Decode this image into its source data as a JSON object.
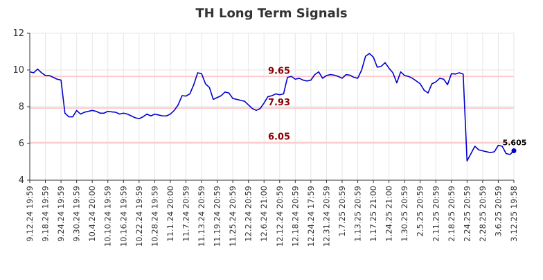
{
  "chart_data": {
    "type": "line",
    "title": "TH Long Term Signals",
    "xlabel": "",
    "ylabel": "",
    "ylim": [
      4,
      12
    ],
    "yticks": [
      4,
      6,
      8,
      10,
      12
    ],
    "grid": true,
    "colors": {
      "line": "#0000cc",
      "reference_line": "#ffcccc",
      "reference_label": "#8b0000",
      "title": "#333333"
    },
    "x_tick_labels": [
      "9.12.24 19:59",
      "9.18.24 19:59",
      "9.24.24 19:59",
      "9.30.24 19:59",
      "10.4.24 20:00",
      "10.10.24 19:59",
      "10.16.24 19:59",
      "10.22.24 19:59",
      "10.28.24 19:59",
      "11.1.24 20:00",
      "11.7.24 20:59",
      "11.13.24 20:59",
      "11.19.24 20:59",
      "11.25.24 20:59",
      "12.2.24 20:59",
      "12.6.24 21:00",
      "12.12.24 20:59",
      "12.18.24 20:59",
      "12.24.24 17:59",
      "12.31.24 20:59",
      "1.7.25 20:59",
      "1.13.25 20:59",
      "1.17.25 21:00",
      "1.24.25 21:00",
      "1.30.25 20:59",
      "2.5.25 20:59",
      "2.11.25 20:59",
      "2.18.25 20:59",
      "2.24.25 20:59",
      "2.28.25 20:59",
      "3.6.25 20:59",
      "3.12.25 19:58"
    ],
    "reference_lines": [
      {
        "value": 9.65,
        "label": "9.65"
      },
      {
        "value": 7.93,
        "label": "7.93"
      },
      {
        "value": 6.05,
        "label": "6.05"
      }
    ],
    "last_point_label": "5.605",
    "series": [
      {
        "values": [
          9.9,
          9.85,
          10.05,
          9.85,
          9.7,
          9.7,
          9.6,
          9.5,
          9.45,
          7.65,
          7.45,
          7.45,
          7.8,
          7.6,
          7.7,
          7.75,
          7.8,
          7.75,
          7.65,
          7.65,
          7.75,
          7.72,
          7.7,
          7.6,
          7.65,
          7.6,
          7.5,
          7.4,
          7.35,
          7.45,
          7.6,
          7.5,
          7.6,
          7.55,
          7.5,
          7.5,
          7.6,
          7.8,
          8.1,
          8.6,
          8.58,
          8.7,
          9.2,
          9.85,
          9.8,
          9.25,
          9.05,
          8.4,
          8.5,
          8.6,
          8.8,
          8.75,
          8.45,
          8.4,
          8.35,
          8.3,
          8.1,
          7.9,
          7.8,
          7.9,
          8.2,
          8.55,
          8.6,
          8.7,
          8.65,
          8.7,
          9.6,
          9.65,
          9.5,
          9.55,
          9.45,
          9.4,
          9.45,
          9.75,
          9.9,
          9.55,
          9.7,
          9.75,
          9.72,
          9.65,
          9.55,
          9.75,
          9.72,
          9.6,
          9.55,
          10.0,
          10.75,
          10.9,
          10.7,
          10.15,
          10.2,
          10.4,
          10.1,
          9.85,
          9.3,
          9.9,
          9.7,
          9.65,
          9.55,
          9.4,
          9.25,
          8.9,
          8.75,
          9.25,
          9.35,
          9.55,
          9.5,
          9.2,
          9.8,
          9.78,
          9.85,
          9.78,
          5.05,
          5.45,
          5.85,
          5.65,
          5.6,
          5.55,
          5.5,
          5.55,
          5.9,
          5.85,
          5.45,
          5.4,
          5.605
        ]
      }
    ]
  }
}
